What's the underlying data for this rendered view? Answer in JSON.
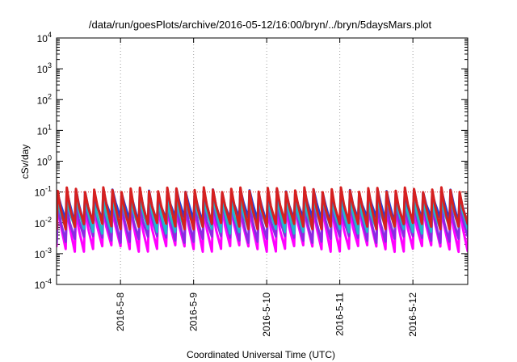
{
  "chart_data": {
    "type": "line",
    "title": "/data/run/goesPlots/archive/2016-05-12/16:00/bryn/../bryn/5daysMars.plot",
    "xlabel": "Coordinated Universal Time (UTC)",
    "ylabel": "cSv/day",
    "yscale": "log",
    "ylim": [
      0.0001,
      10000
    ],
    "xlim": [
      "2016-05-07 03:00",
      "2016-05-12 18:00"
    ],
    "y_ticks": [
      {
        "value": 0.0001,
        "base": "10",
        "exp": "-4"
      },
      {
        "value": 0.001,
        "base": "10",
        "exp": "-3"
      },
      {
        "value": 0.01,
        "base": "10",
        "exp": "-2"
      },
      {
        "value": 0.1,
        "base": "10",
        "exp": "-1"
      },
      {
        "value": 1,
        "base": "10",
        "exp": "0"
      },
      {
        "value": 10,
        "base": "10",
        "exp": "1"
      },
      {
        "value": 100,
        "base": "10",
        "exp": "2"
      },
      {
        "value": 1000,
        "base": "10",
        "exp": "3"
      },
      {
        "value": 10000,
        "base": "10",
        "exp": "4"
      }
    ],
    "x_ticks": [
      {
        "value": "2016-05-08",
        "label": "2016-5-8"
      },
      {
        "value": "2016-05-09",
        "label": "2016-5-9"
      },
      {
        "value": "2016-05-10",
        "label": "2016-5-10"
      },
      {
        "value": "2016-05-11",
        "label": "2016-5-11"
      },
      {
        "value": "2016-05-12",
        "label": "2016-5-12"
      }
    ],
    "grid": "dotted vertical lines at day ticks",
    "cycle_hours": 3,
    "series": [
      {
        "color": "#d62020",
        "peak": 0.12,
        "trough": 0.008
      },
      {
        "color": "#1f3fe0",
        "peak": 0.105,
        "trough": 0.012
      },
      {
        "color": "#20b8c8",
        "peak": 0.06,
        "trough": 0.006
      },
      {
        "color": "#8a2be2",
        "peak": 0.04,
        "trough": 0.003
      },
      {
        "color": "#ff00ff",
        "peak": 0.03,
        "trough": 0.0015
      }
    ],
    "reference_line": {
      "value": 0.1,
      "color": "#d62020"
    }
  }
}
